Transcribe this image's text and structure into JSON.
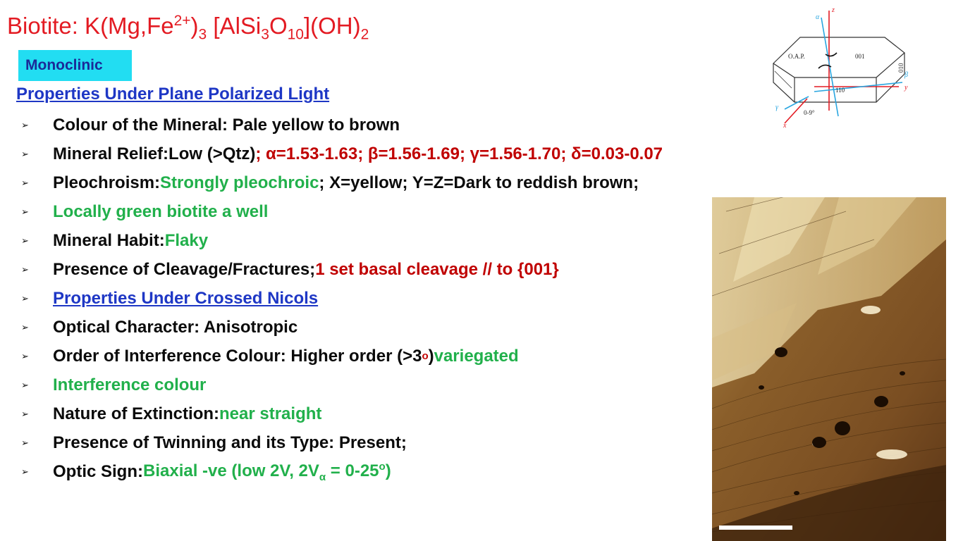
{
  "title": {
    "prefix": "Biotite: K(Mg,Fe",
    "fe_sup": "2+",
    "paren": ")",
    "sub3": "3",
    "mid": " [AlSi",
    "si_sub": "3",
    "o": "O",
    "o_sub": "10",
    "oh": "](OH)",
    "oh_sub": "2"
  },
  "system_tag": "Monoclinic",
  "ppl_heading": "Properties Under Plane Polarized Light",
  "bullet_glyph": "➢",
  "items": {
    "colour": {
      "label": "Colour of the Mineral: Pale yellow to brown"
    },
    "relief": {
      "label": "Mineral Relief:Low (>Qtz)",
      "indices": "; α=1.53-1.63; β=1.56-1.69; γ=1.56-1.70; δ=0.03-0.07"
    },
    "pleo": {
      "label": "Pleochroism: ",
      "strong": "Strongly pleochroic",
      "rest": "; X=yellow; Y=Z=Dark to reddish brown;"
    },
    "local": {
      "label": "Locally green biotite a well"
    },
    "habit": {
      "label": "Mineral Habit: ",
      "value": "Flaky"
    },
    "cleavage": {
      "label": "Presence of Cleavage/Fractures; ",
      "value": "1 set basal cleavage // to  {001}"
    },
    "xn_heading": {
      "label": "Properties Under Crossed Nicols"
    },
    "optical": {
      "label": "Optical Character: Anisotropic"
    },
    "order": {
      "label": "Order of Interference Colour: Higher order (>3",
      "sup": "o",
      "close": ")",
      "value": " variegated"
    },
    "interf": {
      "label": "Interference colour"
    },
    "extinction": {
      "label": "Nature of Extinction: ",
      "value": "near straight"
    },
    "twinning": {
      "label": "Presence of Twinning and its Type: Present;"
    },
    "optic_sign": {
      "label": "Optic Sign: ",
      "v1": "Biaxial -ve (low 2V, 2V",
      "sub": "α",
      "v2": " = 0-25",
      "sup": "o",
      "close": ")"
    }
  },
  "crystal_diagram": {
    "axes": {
      "alpha": "α",
      "z": "z",
      "beta": "β",
      "y_red": "y",
      "gamma": "γ",
      "x": "x"
    },
    "faces": {
      "oap": "O.A.P.",
      "f001": "001",
      "f010": "010",
      "f110": "110"
    },
    "angle": "0-9°"
  },
  "colors": {
    "title": "#e31b23",
    "tag_bg": "#22ddf2",
    "heading": "#1e37c5",
    "red": "#c00000",
    "green": "#21b04b"
  }
}
